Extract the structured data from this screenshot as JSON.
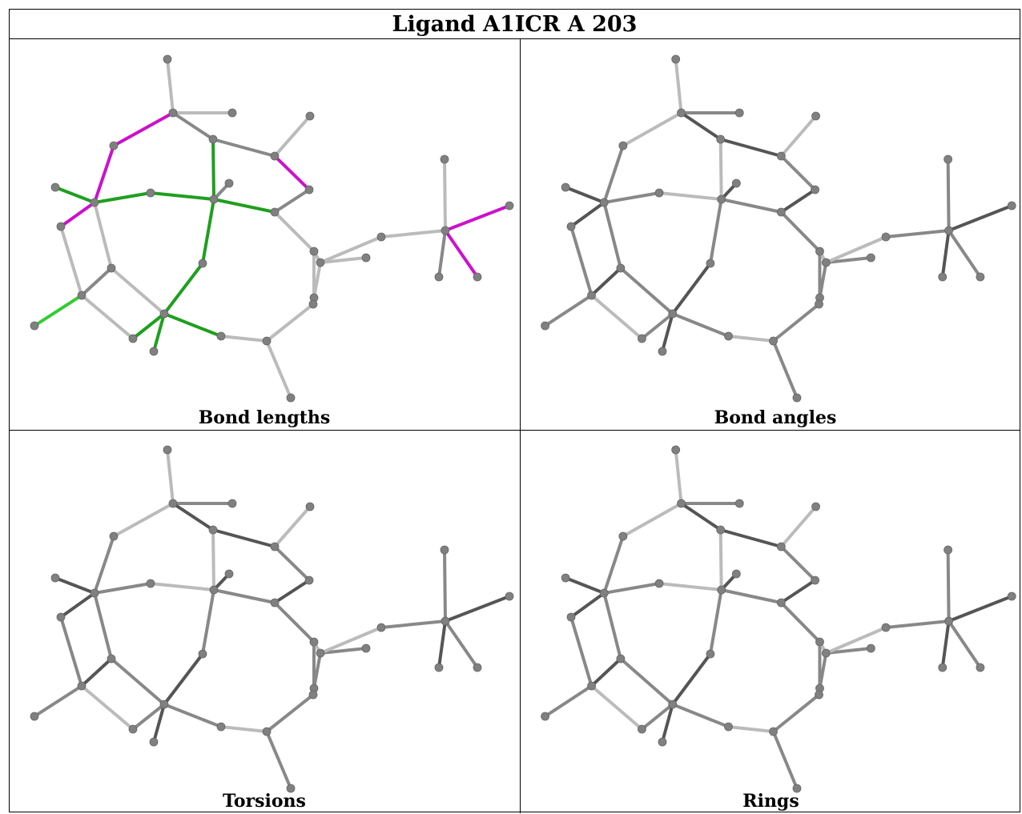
{
  "title": "Ligand A1ICR A 203",
  "panels": [
    {
      "caption": "Bond lengths",
      "mode": "colored"
    },
    {
      "caption": "Bond angles",
      "mode": "gray"
    },
    {
      "caption": "Torsions",
      "mode": "gray"
    },
    {
      "caption": "Rings",
      "mode": "gray"
    }
  ],
  "colors": {
    "green_dark": "#1f9f1f",
    "green_light": "#33cc33",
    "magenta": "#cc11cc",
    "gray_dark": "#555555",
    "gray_mid": "#888888",
    "gray_light": "#bbbbbb",
    "atom": "#808080"
  }
}
